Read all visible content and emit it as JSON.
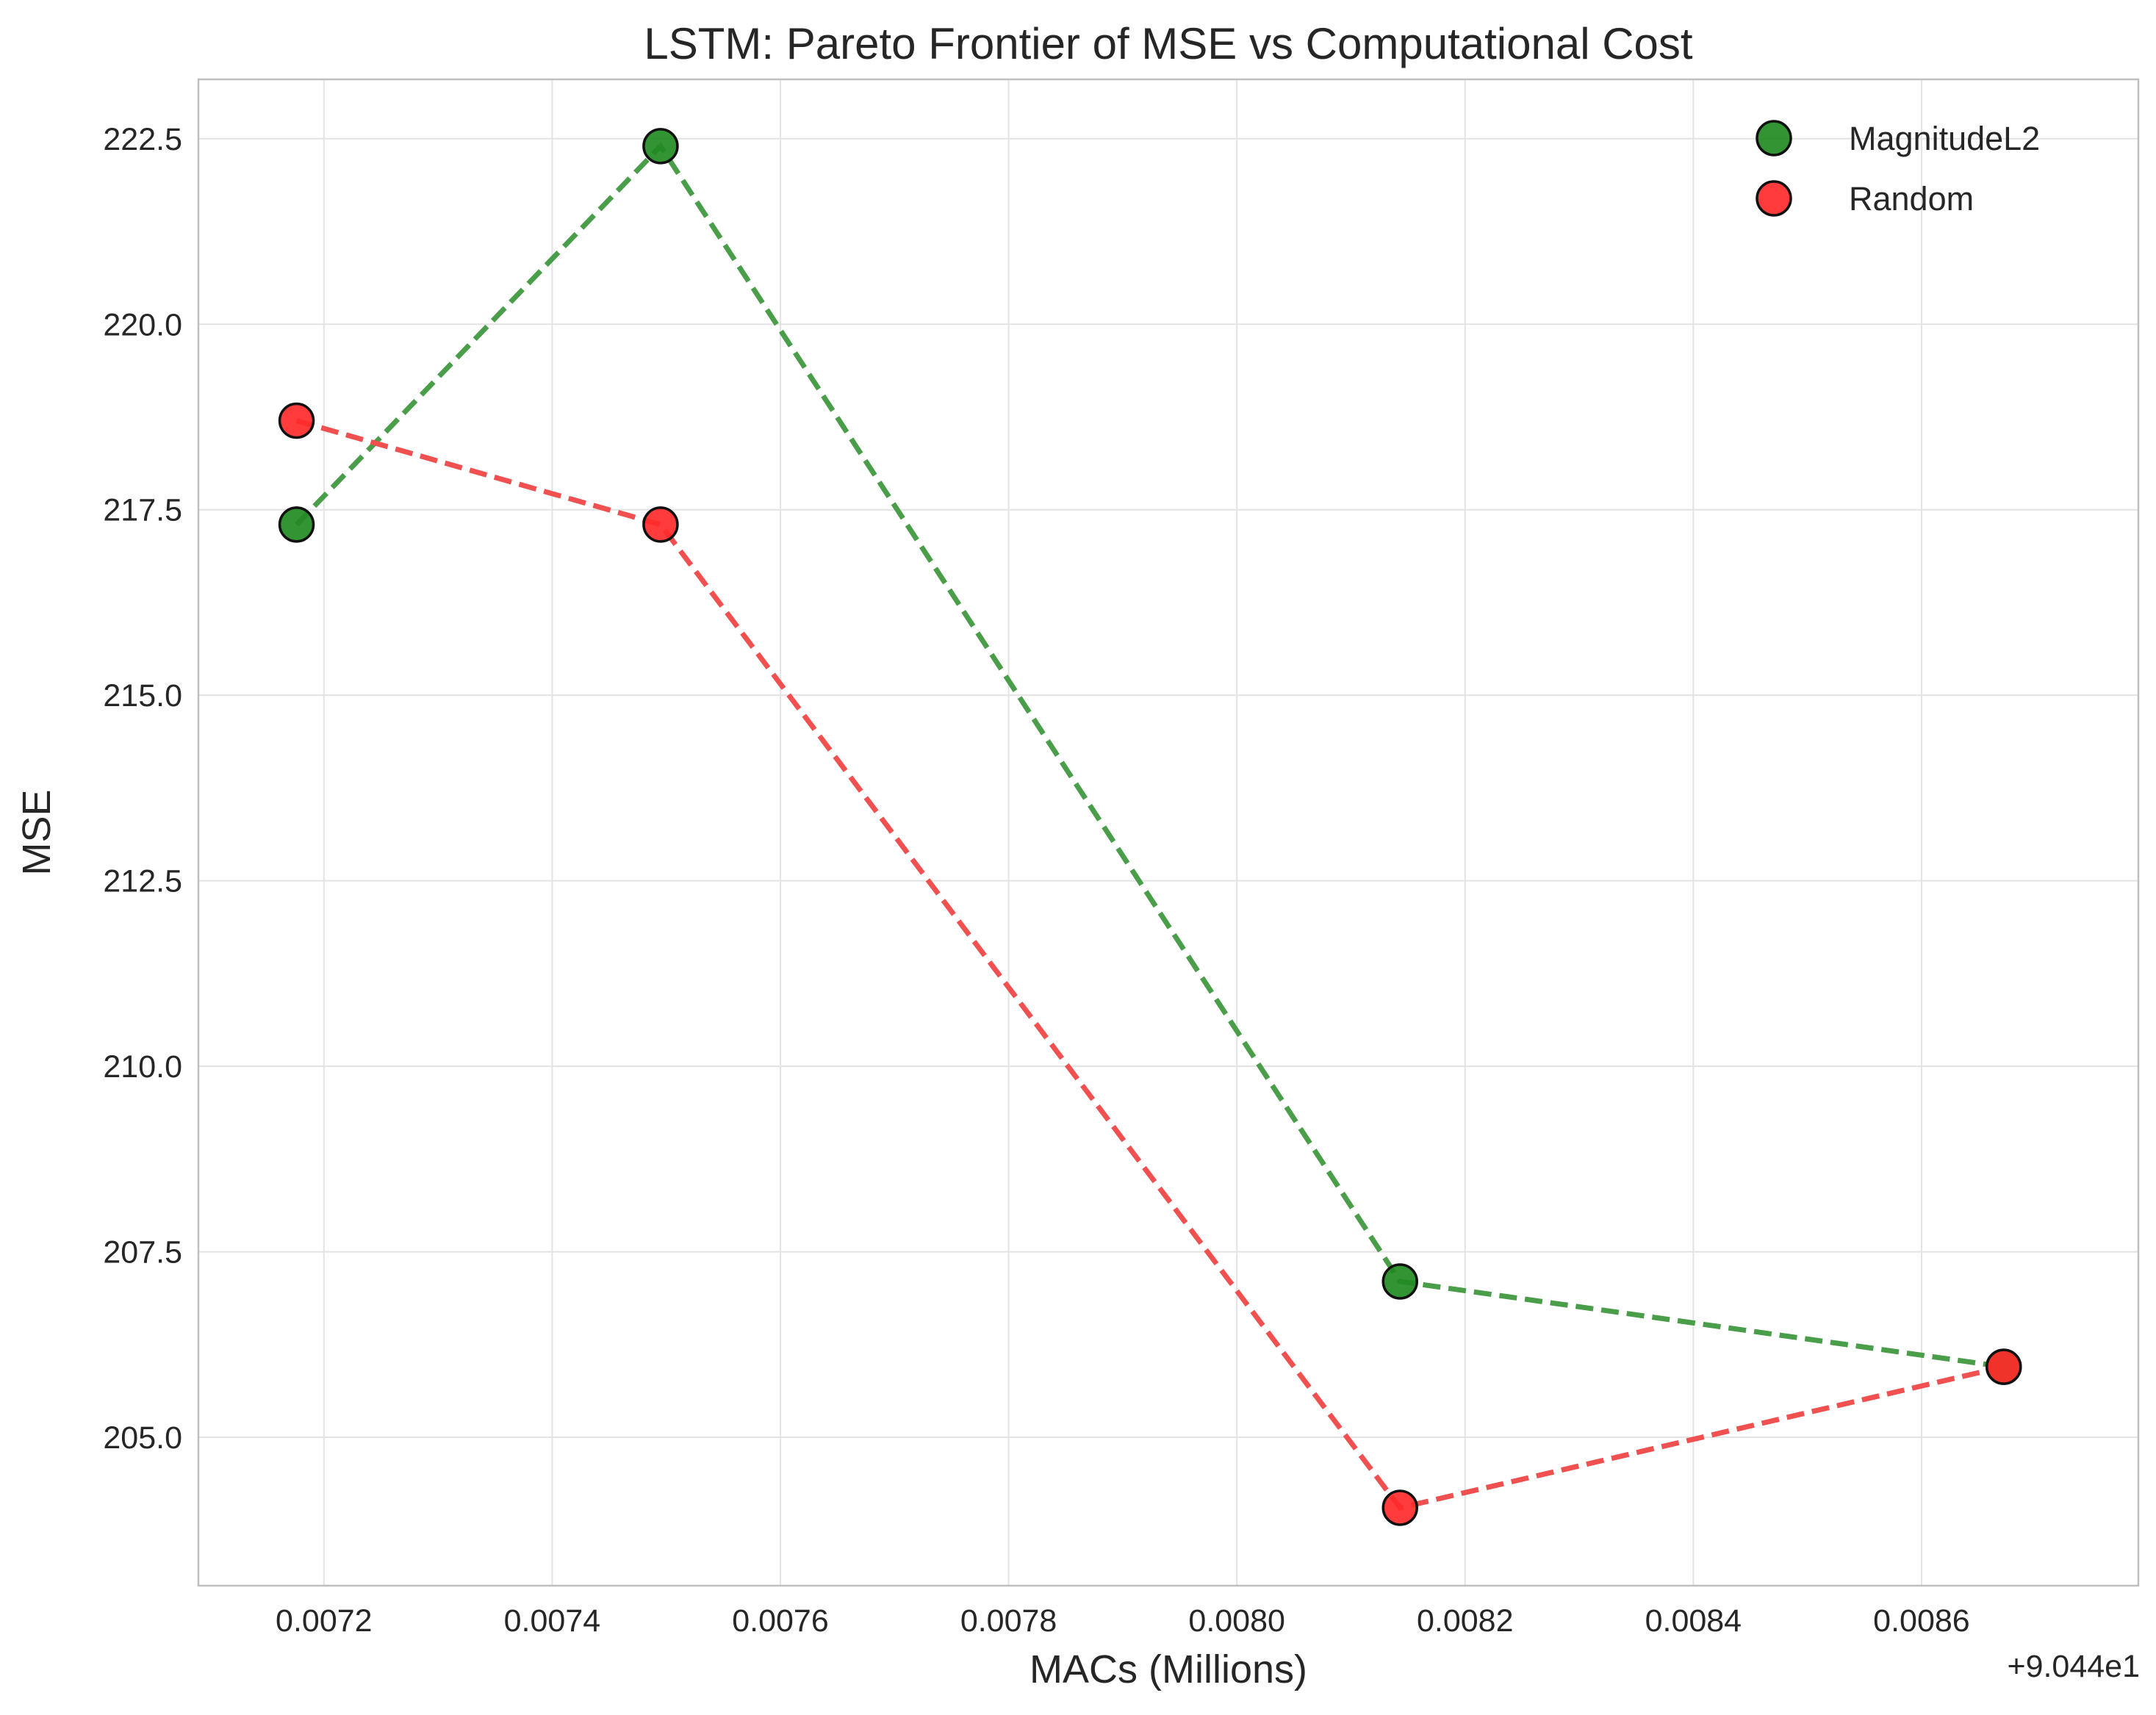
{
  "chart_data": {
    "type": "scatter",
    "title": "LSTM: Pareto Frontier of MSE vs Computational Cost",
    "xlabel": "MACs (Millions)",
    "ylabel": "MSE",
    "x_offset_label": "+9.044e1",
    "x_offset": 90.44,
    "xlim": [
      0.00709,
      0.00879
    ],
    "ylim": [
      203.0,
      223.3
    ],
    "x_ticks": [
      0.0072,
      0.0074,
      0.0076,
      0.0078,
      0.008,
      0.0082,
      0.0084,
      0.0086
    ],
    "x_tick_labels": [
      "0.0072",
      "0.0074",
      "0.0076",
      "0.0078",
      "0.0080",
      "0.0082",
      "0.0084",
      "0.0086"
    ],
    "y_ticks": [
      205.0,
      207.5,
      210.0,
      212.5,
      215.0,
      217.5,
      220.0,
      222.5
    ],
    "y_tick_labels": [
      "205.0",
      "207.5",
      "210.0",
      "212.5",
      "215.0",
      "217.5",
      "220.0",
      "222.5"
    ],
    "grid": true,
    "legend_position": "top-right",
    "series": [
      {
        "name": "MagnitudeL2",
        "color": "#228B22",
        "line_color": "#4a9e4a",
        "x": [
          0.007176,
          0.007495,
          0.008143,
          0.008672
        ],
        "y": [
          217.3,
          222.4,
          207.1,
          205.95
        ]
      },
      {
        "name": "Random",
        "color": "#ff2a2a",
        "line_color": "#f05050",
        "x": [
          0.007176,
          0.007495,
          0.008143,
          0.008672
        ],
        "y": [
          218.7,
          217.3,
          204.05,
          205.95
        ]
      }
    ]
  }
}
